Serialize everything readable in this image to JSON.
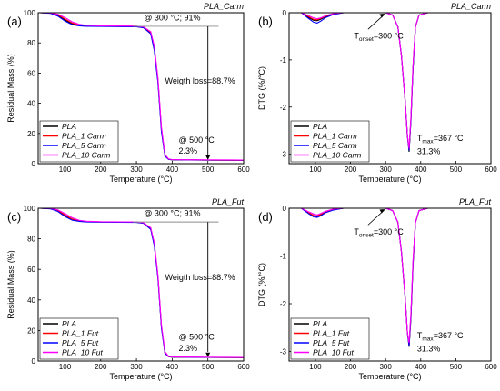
{
  "figure": {
    "colors": {
      "PLA": "#000000",
      "PLA_1": "#ff0000",
      "PLA_5": "#0000ff",
      "PLA_10": "#ff00ff",
      "guide": "#8c8c8c"
    }
  },
  "chart_data": [
    {
      "id": "a",
      "type": "line",
      "panel_label": "(a)",
      "title": "PLA_Carm",
      "xlabel": "Temperature (°C)",
      "ylabel": "Residual Mass (%)",
      "xlim": [
        25,
        600
      ],
      "ylim": [
        0,
        100
      ],
      "xticks": [
        100,
        200,
        300,
        400,
        500,
        600
      ],
      "yticks": [
        0,
        20,
        40,
        60,
        80,
        100
      ],
      "legend": {
        "placement": "bottom-left",
        "labels": [
          "PLA",
          "PLA_1 Carm",
          "PLA_5 Carm",
          "PLA_10 Carm"
        ]
      },
      "annotations": {
        "top": "@ 300 °C; 91%",
        "loss": "Weigth loss=88.7%",
        "end1": "@ 500 °C",
        "end2": "2.3%"
      },
      "series": [
        {
          "name": "PLA",
          "x": [
            30,
            60,
            80,
            100,
            120,
            140,
            160,
            200,
            260,
            300,
            320,
            340,
            350,
            360,
            370,
            380,
            390,
            400,
            450,
            500,
            600
          ],
          "y": [
            100,
            99.7,
            98.2,
            95.1,
            92.6,
            91.5,
            91.1,
            91.0,
            90.9,
            90.8,
            90.2,
            86.5,
            76,
            55,
            22,
            5,
            2.8,
            2.5,
            2.4,
            2.3,
            2.2
          ]
        },
        {
          "name": "PLA_1 Carm",
          "x": [
            30,
            60,
            80,
            100,
            120,
            140,
            160,
            200,
            260,
            300,
            320,
            340,
            350,
            360,
            370,
            380,
            390,
            400,
            450,
            500,
            600
          ],
          "y": [
            100,
            99.8,
            98.6,
            95.8,
            93.2,
            91.8,
            91.4,
            91.2,
            91.1,
            91.0,
            90.4,
            87,
            77,
            56,
            23,
            5,
            3.0,
            2.6,
            2.5,
            2.4,
            2.3
          ]
        },
        {
          "name": "PLA_5 Carm",
          "x": [
            30,
            60,
            80,
            100,
            120,
            140,
            160,
            200,
            260,
            300,
            320,
            340,
            350,
            360,
            370,
            380,
            390,
            400,
            450,
            500,
            600
          ],
          "y": [
            100,
            99.6,
            97.8,
            94.5,
            92.1,
            91.3,
            91.0,
            90.9,
            90.8,
            90.7,
            90.0,
            86,
            75,
            54,
            21,
            5,
            2.9,
            2.6,
            2.5,
            2.4,
            2.3
          ]
        },
        {
          "name": "PLA_10 Carm",
          "x": [
            30,
            60,
            80,
            100,
            120,
            140,
            160,
            200,
            260,
            300,
            320,
            340,
            350,
            360,
            370,
            380,
            390,
            400,
            450,
            500,
            600
          ],
          "y": [
            100,
            99.9,
            99.0,
            96.8,
            94.0,
            92.3,
            91.6,
            91.3,
            91.2,
            91.1,
            90.6,
            87.5,
            78,
            57,
            24,
            6,
            3.1,
            2.7,
            2.6,
            2.5,
            2.4
          ]
        }
      ]
    },
    {
      "id": "b",
      "type": "line",
      "panel_label": "(b)",
      "title": "PLA_Carm",
      "xlabel": "Temperature (°C)",
      "ylabel": "DTG (%/°C)",
      "xlim": [
        25,
        600
      ],
      "ylim": [
        -3.2,
        0
      ],
      "xticks": [
        100,
        200,
        300,
        400,
        500,
        600
      ],
      "yticks": [
        0,
        -1,
        -2,
        -3
      ],
      "legend": {
        "placement": "bottom-left",
        "labels": [
          "PLA",
          "PLA_1 Carm",
          "PLA_5 Carm",
          "PLA_10 Carm"
        ]
      },
      "annotations": {
        "onset_T": "T",
        "onset_sub": "onset",
        "onset_val": "=300 °C",
        "max_T": "T",
        "max_sub": "max",
        "max_val": "=367 °C",
        "pct": "31.3%"
      },
      "series": [
        {
          "name": "PLA",
          "x": [
            30,
            60,
            80,
            95,
            105,
            115,
            130,
            150,
            180,
            250,
            300,
            320,
            335,
            345,
            355,
            362,
            367,
            372,
            378,
            385,
            395,
            420,
            500,
            600
          ],
          "y": [
            0,
            0,
            -0.1,
            -0.16,
            -0.17,
            -0.14,
            -0.08,
            -0.03,
            0,
            0,
            0,
            -0.05,
            -0.3,
            -0.9,
            -1.8,
            -2.6,
            -2.95,
            -2.3,
            -1.2,
            -0.3,
            -0.05,
            0,
            0,
            0
          ]
        },
        {
          "name": "PLA_1 Carm",
          "x": [
            30,
            60,
            80,
            95,
            105,
            115,
            130,
            150,
            180,
            250,
            300,
            320,
            335,
            345,
            355,
            362,
            367,
            372,
            378,
            385,
            395,
            420,
            500,
            600
          ],
          "y": [
            0,
            0,
            -0.08,
            -0.14,
            -0.15,
            -0.12,
            -0.07,
            -0.03,
            0,
            0,
            0,
            -0.05,
            -0.3,
            -0.9,
            -1.8,
            -2.6,
            -2.9,
            -2.25,
            -1.15,
            -0.3,
            -0.05,
            0,
            0,
            0
          ]
        },
        {
          "name": "PLA_5 Carm",
          "x": [
            30,
            60,
            80,
            95,
            105,
            115,
            130,
            150,
            180,
            250,
            300,
            320,
            335,
            345,
            355,
            362,
            367,
            372,
            378,
            385,
            395,
            420,
            500,
            600
          ],
          "y": [
            0,
            0,
            -0.12,
            -0.2,
            -0.22,
            -0.18,
            -0.1,
            -0.04,
            0,
            0,
            0,
            -0.05,
            -0.3,
            -0.9,
            -1.8,
            -2.6,
            -2.92,
            -2.28,
            -1.18,
            -0.3,
            -0.05,
            0,
            0,
            0
          ]
        },
        {
          "name": "PLA_10 Carm",
          "x": [
            30,
            60,
            80,
            95,
            105,
            115,
            130,
            150,
            180,
            250,
            300,
            320,
            335,
            345,
            355,
            362,
            367,
            372,
            378,
            385,
            395,
            420,
            500,
            600
          ],
          "y": [
            0,
            0,
            -0.06,
            -0.11,
            -0.13,
            -0.11,
            -0.06,
            -0.02,
            0,
            0,
            0,
            -0.05,
            -0.3,
            -0.9,
            -1.8,
            -2.6,
            -2.88,
            -2.22,
            -1.12,
            -0.3,
            -0.05,
            0,
            0,
            0
          ]
        }
      ]
    },
    {
      "id": "c",
      "type": "line",
      "panel_label": "(c)",
      "title": "PLA_Fut",
      "xlabel": "Temperature (°C)",
      "ylabel": "Residual Mass (%)",
      "xlim": [
        25,
        600
      ],
      "ylim": [
        0,
        100
      ],
      "xticks": [
        100,
        200,
        300,
        400,
        500,
        600
      ],
      "yticks": [
        0,
        20,
        40,
        60,
        80,
        100
      ],
      "legend": {
        "placement": "bottom-left",
        "labels": [
          "PLA",
          "PLA_1 Fut",
          "PLA_5 Fut",
          "PLA_10 Fut"
        ]
      },
      "annotations": {
        "top": "@ 300 °C; 91%",
        "loss": "Weigth loss=88.7%",
        "end1": "@ 500 °C",
        "end2": "2.3%"
      },
      "series": [
        {
          "name": "PLA",
          "x": [
            30,
            60,
            80,
            100,
            120,
            140,
            160,
            200,
            260,
            300,
            320,
            340,
            350,
            360,
            370,
            380,
            390,
            400,
            450,
            500,
            600
          ],
          "y": [
            100,
            99.7,
            98.2,
            95.1,
            92.6,
            91.5,
            91.1,
            91.0,
            90.9,
            90.8,
            90.2,
            86.5,
            76,
            55,
            22,
            5,
            2.8,
            2.5,
            2.4,
            2.3,
            2.2
          ]
        },
        {
          "name": "PLA_1 Fut",
          "x": [
            30,
            60,
            80,
            100,
            120,
            140,
            160,
            200,
            260,
            300,
            320,
            340,
            350,
            360,
            370,
            380,
            390,
            400,
            450,
            500,
            600
          ],
          "y": [
            100,
            99.8,
            98.5,
            95.6,
            93.0,
            91.7,
            91.3,
            91.1,
            91.0,
            90.9,
            90.3,
            86.8,
            76.5,
            55.5,
            22.5,
            5,
            2.9,
            2.6,
            2.5,
            2.4,
            2.3
          ]
        },
        {
          "name": "PLA_5 Fut",
          "x": [
            30,
            60,
            80,
            100,
            120,
            140,
            160,
            200,
            260,
            300,
            320,
            340,
            350,
            360,
            370,
            380,
            390,
            400,
            450,
            500,
            600
          ],
          "y": [
            100,
            99.6,
            97.9,
            94.6,
            92.2,
            91.4,
            91.0,
            90.9,
            90.8,
            90.7,
            90.1,
            86.2,
            75.5,
            54.5,
            21.5,
            5,
            2.9,
            2.6,
            2.5,
            2.4,
            2.3
          ]
        },
        {
          "name": "PLA_10 Fut",
          "x": [
            30,
            60,
            80,
            100,
            120,
            140,
            160,
            200,
            260,
            300,
            320,
            340,
            350,
            360,
            370,
            380,
            390,
            400,
            450,
            500,
            600
          ],
          "y": [
            100,
            99.9,
            98.9,
            96.5,
            93.8,
            92.1,
            91.5,
            91.2,
            91.1,
            91.0,
            90.5,
            87.3,
            77.5,
            56.5,
            23.5,
            6,
            3.0,
            2.7,
            2.6,
            2.5,
            2.4
          ]
        }
      ]
    },
    {
      "id": "d",
      "type": "line",
      "panel_label": "(d)",
      "title": "PLA_Fut",
      "xlabel": "Temperature (°C)",
      "ylabel": "DTG (%/°C)",
      "xlim": [
        25,
        600
      ],
      "ylim": [
        -3.2,
        0
      ],
      "xticks": [
        100,
        200,
        300,
        400,
        500,
        600
      ],
      "yticks": [
        0,
        -1,
        -2,
        -3
      ],
      "legend": {
        "placement": "bottom-left",
        "labels": [
          "PLA",
          "PLA_1 Fut",
          "PLA_5 Fut",
          "PLA_10 Fut"
        ]
      },
      "annotations": {
        "onset_T": "T",
        "onset_sub": "onset",
        "onset_val": "=300 °C",
        "max_T": "T",
        "max_sub": "max",
        "max_val": "=367 °C",
        "pct": "31.3%"
      },
      "series": [
        {
          "name": "PLA",
          "x": [
            30,
            60,
            80,
            95,
            105,
            115,
            130,
            150,
            180,
            250,
            300,
            320,
            335,
            345,
            355,
            362,
            367,
            372,
            378,
            385,
            395,
            420,
            500,
            600
          ],
          "y": [
            0,
            0,
            -0.1,
            -0.16,
            -0.17,
            -0.14,
            -0.08,
            -0.03,
            0,
            0,
            0,
            -0.05,
            -0.3,
            -0.9,
            -1.8,
            -2.6,
            -2.9,
            -2.3,
            -1.2,
            -0.3,
            -0.05,
            0,
            0,
            0
          ]
        },
        {
          "name": "PLA_1 Fut",
          "x": [
            30,
            60,
            80,
            95,
            105,
            115,
            130,
            150,
            180,
            250,
            300,
            320,
            335,
            345,
            355,
            362,
            367,
            372,
            378,
            385,
            395,
            420,
            500,
            600
          ],
          "y": [
            0,
            0,
            -0.09,
            -0.15,
            -0.16,
            -0.13,
            -0.07,
            -0.03,
            0,
            0,
            0,
            -0.05,
            -0.3,
            -0.9,
            -1.8,
            -2.6,
            -2.85,
            -2.25,
            -1.15,
            -0.3,
            -0.05,
            0,
            0,
            0
          ]
        },
        {
          "name": "PLA_5 Fut",
          "x": [
            30,
            60,
            80,
            95,
            105,
            115,
            130,
            150,
            180,
            250,
            300,
            320,
            335,
            345,
            355,
            362,
            367,
            372,
            378,
            385,
            395,
            420,
            500,
            600
          ],
          "y": [
            0,
            0,
            -0.11,
            -0.18,
            -0.19,
            -0.16,
            -0.09,
            -0.04,
            0,
            0,
            0,
            -0.05,
            -0.3,
            -0.9,
            -1.8,
            -2.6,
            -2.88,
            -2.27,
            -1.17,
            -0.3,
            -0.05,
            0,
            0,
            0
          ]
        },
        {
          "name": "PLA_10 Fut",
          "x": [
            30,
            60,
            80,
            95,
            105,
            115,
            130,
            150,
            180,
            250,
            300,
            320,
            335,
            345,
            355,
            362,
            367,
            372,
            378,
            385,
            395,
            420,
            500,
            600
          ],
          "y": [
            0,
            0,
            -0.07,
            -0.12,
            -0.14,
            -0.11,
            -0.06,
            -0.02,
            0,
            0,
            0,
            -0.05,
            -0.3,
            -0.9,
            -1.8,
            -2.6,
            -2.82,
            -2.2,
            -1.1,
            -0.3,
            -0.05,
            0,
            0,
            0
          ]
        }
      ]
    }
  ]
}
